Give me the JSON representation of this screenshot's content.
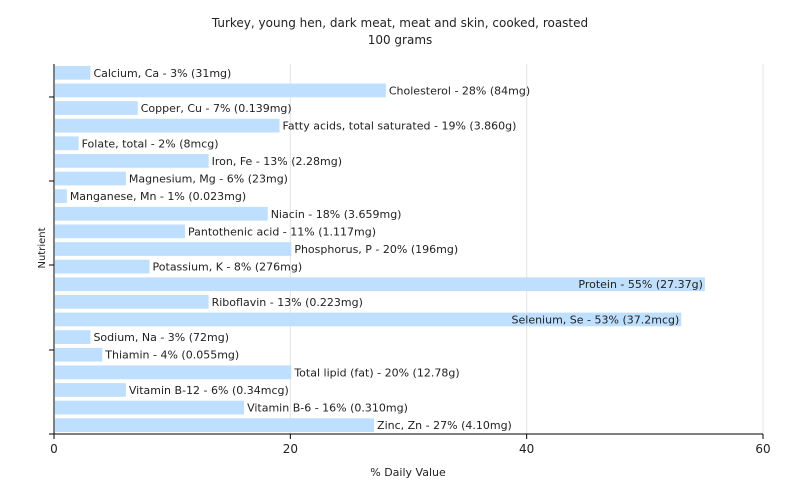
{
  "chart_data": {
    "type": "bar",
    "orientation": "horizontal",
    "title": "Turkey, young hen, dark meat, meat and skin, cooked, roasted",
    "subtitle": "100 grams",
    "xlabel": "% Daily Value",
    "ylabel": "Nutrient",
    "xlim": [
      0,
      60
    ],
    "xticks": [
      "0",
      "20",
      "40",
      "60"
    ],
    "grid": true,
    "legend": "none",
    "bar_color": "#bfdfff",
    "categories": [
      "Calcium, Ca",
      "Cholesterol",
      "Copper, Cu",
      "Fatty acids, total saturated",
      "Folate, total",
      "Iron, Fe",
      "Magnesium, Mg",
      "Manganese, Mn",
      "Niacin",
      "Pantothenic acid",
      "Phosphorus, P",
      "Potassium, K",
      "Protein",
      "Riboflavin",
      "Selenium, Se",
      "Sodium, Na",
      "Thiamin",
      "Total lipid (fat)",
      "Vitamin B-12",
      "Vitamin B-6",
      "Zinc, Zn"
    ],
    "values": [
      3,
      28,
      7,
      19,
      2,
      13,
      6,
      1,
      18,
      11,
      20,
      8,
      55,
      13,
      53,
      3,
      4,
      20,
      6,
      16,
      27
    ],
    "labels": [
      "Calcium, Ca - 3% (31mg)",
      "Cholesterol - 28% (84mg)",
      "Copper, Cu - 7% (0.139mg)",
      "Fatty acids, total saturated - 19% (3.860g)",
      "Folate, total - 2% (8mcg)",
      "Iron, Fe - 13% (2.28mg)",
      "Magnesium, Mg - 6% (23mg)",
      "Manganese, Mn - 1% (0.023mg)",
      "Niacin - 18% (3.659mg)",
      "Pantothenic acid - 11% (1.117mg)",
      "Phosphorus, P - 20% (196mg)",
      "Potassium, K - 8% (276mg)",
      "Protein - 55% (27.37g)",
      "Riboflavin - 13% (0.223mg)",
      "Selenium, Se - 53% (37.2mcg)",
      "Sodium, Na - 3% (72mg)",
      "Thiamin - 4% (0.055mg)",
      "Total lipid (fat) - 20% (12.78g)",
      "Vitamin B-12 - 6% (0.34mcg)",
      "Vitamin B-6 - 16% (0.310mg)",
      "Zinc, Zn - 27% (4.10mg)"
    ]
  }
}
